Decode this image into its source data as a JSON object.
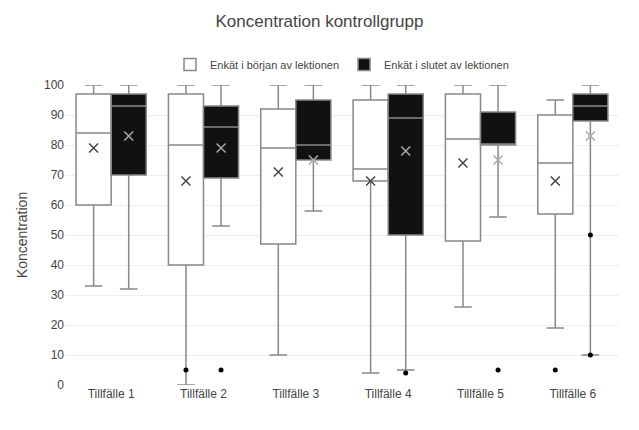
{
  "chart_data": {
    "type": "box",
    "title": "Koncentration kontrollgrupp",
    "ylabel": "Koncentration",
    "categories": [
      "Tillfälle 1",
      "Tillfälle 2",
      "Tillfälle 3",
      "Tillfälle 4",
      "Tillfälle 5",
      "Tillfälle 6"
    ],
    "series": [
      {
        "name": "Enkät i början av lektionen",
        "color": "#ffffff",
        "values": [
          {
            "whislo": 33,
            "q1": 60,
            "med": 84,
            "q3": 97,
            "whishi": 100,
            "mean": 79,
            "fliers": []
          },
          {
            "whislo": 0,
            "q1": 40,
            "med": 80,
            "q3": 97,
            "whishi": 100,
            "mean": 68,
            "fliers": [
              5
            ]
          },
          {
            "whislo": 10,
            "q1": 47,
            "med": 79,
            "q3": 92,
            "whishi": 100,
            "mean": 71,
            "fliers": []
          },
          {
            "whislo": 4,
            "q1": 68,
            "med": 72,
            "q3": 95,
            "whishi": 100,
            "mean": 68,
            "fliers": []
          },
          {
            "whislo": 26,
            "q1": 48,
            "med": 82,
            "q3": 97,
            "whishi": 100,
            "mean": 74,
            "fliers": []
          },
          {
            "whislo": 19,
            "q1": 57,
            "med": 74,
            "q3": 90,
            "whishi": 95,
            "mean": 68,
            "fliers": [
              5
            ]
          }
        ]
      },
      {
        "name": "Enkät i slutet av lektionen",
        "color": "#111111",
        "values": [
          {
            "whislo": 32,
            "q1": 70,
            "med": 93,
            "q3": 97,
            "whishi": 100,
            "mean": 83,
            "fliers": []
          },
          {
            "whislo": 53,
            "q1": 69,
            "med": 86,
            "q3": 93,
            "whishi": 100,
            "mean": 79,
            "fliers": [
              5
            ]
          },
          {
            "whislo": 58,
            "q1": 75,
            "med": 80,
            "q3": 95,
            "whishi": 100,
            "mean": 75,
            "fliers": []
          },
          {
            "whislo": 5,
            "q1": 50,
            "med": 89,
            "q3": 97,
            "whishi": 100,
            "mean": 78,
            "fliers": [
              4
            ]
          },
          {
            "whislo": 56,
            "q1": 80,
            "med": 80,
            "q3": 91,
            "whishi": 100,
            "mean": 75,
            "fliers": [
              5
            ]
          },
          {
            "whislo": 10,
            "q1": 88,
            "med": 93,
            "q3": 97,
            "whishi": 100,
            "mean": 83,
            "fliers": [
              50,
              10
            ]
          }
        ]
      }
    ],
    "ylim": [
      0,
      100
    ],
    "yticks": [
      0,
      10,
      20,
      30,
      40,
      50,
      60,
      70,
      80,
      90,
      100
    ],
    "grid": true,
    "legend": "top",
    "marker": "x"
  }
}
